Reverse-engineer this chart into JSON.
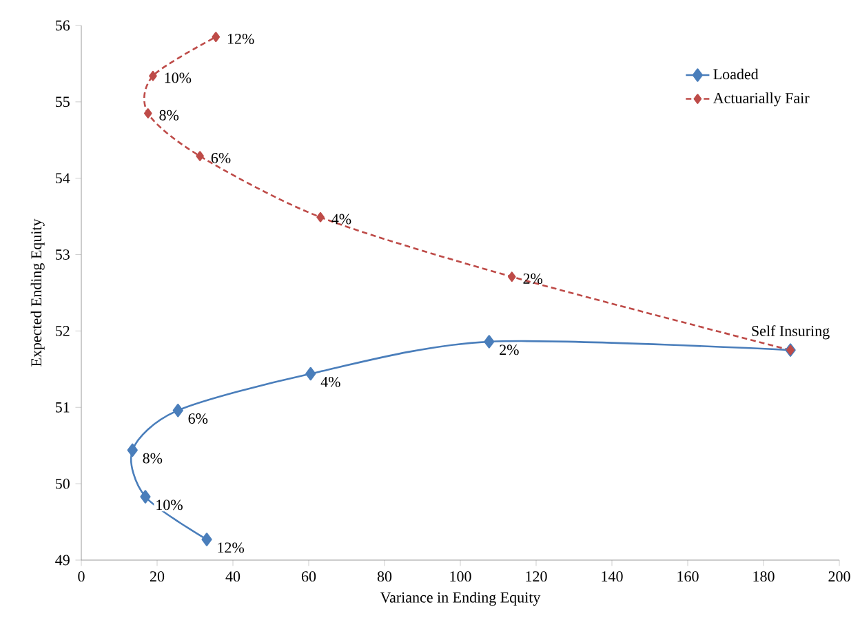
{
  "chart_data": {
    "type": "line",
    "xlabel": "Variance in Ending Equity",
    "ylabel": "Expected Ending Equity",
    "xlim": [
      0,
      200
    ],
    "ylim": [
      49,
      56
    ],
    "xticks": [
      0,
      20,
      40,
      60,
      80,
      100,
      120,
      140,
      160,
      180,
      200
    ],
    "yticks": [
      49,
      50,
      51,
      52,
      53,
      54,
      55,
      56
    ],
    "marker": "diamond",
    "legend": "top right",
    "series": [
      {
        "name": "Loaded",
        "color": "#4a7ebb",
        "line_style": "solid",
        "x": [
          187.1,
          107.6,
          60.5,
          25.5,
          13.5,
          16.9,
          33.1
        ],
        "values": [
          51.75,
          51.86,
          51.44,
          50.96,
          50.44,
          49.83,
          49.27
        ]
      },
      {
        "name": "Actuarially Fair",
        "color": "#be4b48",
        "line_style": "dashed",
        "x": [
          187.1,
          113.6,
          63.1,
          31.3,
          17.6,
          18.9,
          35.5
        ],
        "values": [
          51.75,
          52.71,
          53.49,
          54.29,
          54.85,
          55.34,
          55.85
        ]
      }
    ],
    "annotations": [
      {
        "text": "Self Insuring",
        "x": 187.1,
        "y": 51.75
      },
      {
        "text": "2%",
        "x": 107.6,
        "y": 51.86
      },
      {
        "text": "4%",
        "x": 60.5,
        "y": 51.44
      },
      {
        "text": "6%",
        "x": 25.5,
        "y": 50.96
      },
      {
        "text": "8%",
        "x": 13.5,
        "y": 50.44
      },
      {
        "text": "10%",
        "x": 16.9,
        "y": 49.83
      },
      {
        "text": "12%",
        "x": 33.1,
        "y": 49.27
      },
      {
        "text": "2%",
        "x": 113.6,
        "y": 52.71
      },
      {
        "text": "4%",
        "x": 63.1,
        "y": 53.49
      },
      {
        "text": "6%",
        "x": 31.3,
        "y": 54.29
      },
      {
        "text": "8%",
        "x": 17.6,
        "y": 54.85
      },
      {
        "text": "10%",
        "x": 18.9,
        "y": 55.34
      },
      {
        "text": "12%",
        "x": 35.5,
        "y": 55.85
      }
    ]
  }
}
